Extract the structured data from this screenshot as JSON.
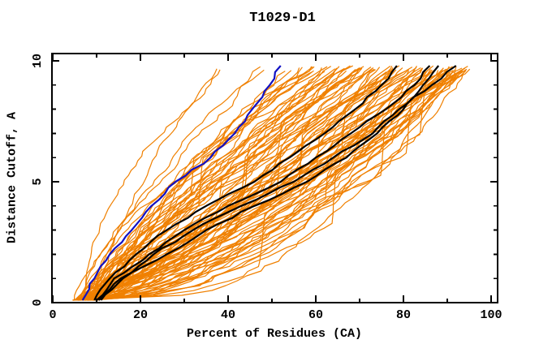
{
  "chart_data": {
    "type": "line",
    "title": "T1029-D1",
    "xlabel": "Percent of Residues (CA)",
    "ylabel": "Distance Cutoff, A",
    "xlim": [
      0,
      101.5
    ],
    "ylim": [
      0,
      10.3
    ],
    "grid": false,
    "legend": "none",
    "x_axis": {
      "major_ticks": [
        0,
        20,
        40,
        60,
        80,
        100
      ],
      "minor_ticks": [
        10,
        30,
        50,
        70,
        90
      ]
    },
    "y_axis": {
      "major_ticks": [
        0,
        5,
        10
      ],
      "minor_ticks": [
        1,
        2,
        3,
        4,
        6,
        7,
        8,
        9
      ]
    },
    "colors": {
      "background": "#ffffff",
      "axis": "#000000",
      "ensemble": "#f08000",
      "highlight": "#000000",
      "reference": "#1111c4"
    },
    "cutoffs": [
      0.1,
      1,
      2,
      3,
      4,
      5,
      6,
      7,
      8,
      9,
      9.8
    ],
    "series": [
      {
        "name": "blue-reference-curve",
        "color": "#1111c4",
        "width": 2.2,
        "percents": [
          6.8,
          9.5,
          13,
          18,
          22.5,
          28,
          36,
          41.5,
          45.5,
          49.5,
          52
        ]
      },
      {
        "name": "black-curve-1",
        "color": "#000000",
        "width": 2.2,
        "percents": [
          9.5,
          13,
          19,
          26,
          35,
          46,
          54,
          62,
          69,
          75,
          78.5
        ]
      },
      {
        "name": "black-curve-2",
        "color": "#000000",
        "width": 2.2,
        "percents": [
          10,
          14,
          22,
          30,
          40,
          52,
          60,
          68,
          76,
          82.5,
          86
        ]
      },
      {
        "name": "black-curve-3",
        "color": "#000000",
        "width": 2.2,
        "percents": [
          10.5,
          15.5,
          26,
          35,
          46,
          58,
          67,
          74,
          80,
          84.5,
          88
        ]
      },
      {
        "name": "black-curve-4",
        "color": "#000000",
        "width": 2.2,
        "percents": [
          11,
          16,
          23,
          32,
          43,
          55,
          64,
          73,
          79,
          86.5,
          92
        ]
      }
    ],
    "ensemble": {
      "name": "model-curves",
      "color": "#f08000",
      "width": 1.2,
      "count": 95,
      "seed": 1029,
      "start_percent_min": 4.5,
      "start_percent_max": 10.5,
      "top_percent_min": 33,
      "top_percent_max": 96,
      "cutoff_min": 0.1,
      "cutoff_max": 9.8
    }
  }
}
